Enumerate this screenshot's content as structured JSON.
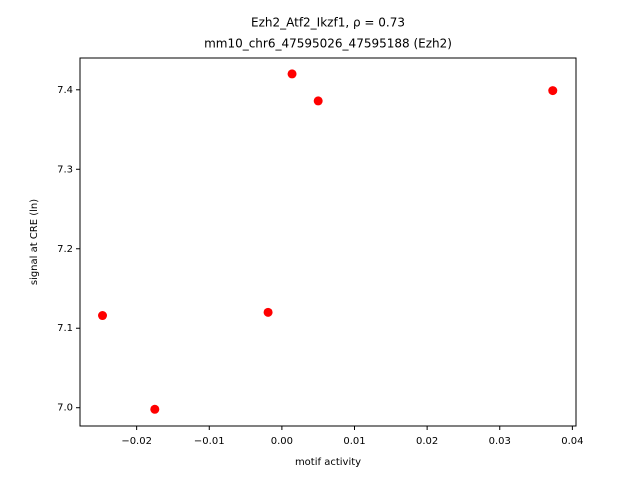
{
  "chart_data": {
    "type": "scatter",
    "title": "Ezh2_Atf2_Ikzf1, ρ = 0.73",
    "subtitle": "mm10_chr6_47595026_47595188 (Ezh2)",
    "xlabel": "motif activity",
    "ylabel": "signal at CRE (ln)",
    "color": "#ff0000",
    "x": [
      -0.0247,
      -0.0175,
      -0.0019,
      0.0014,
      0.005,
      0.0373
    ],
    "values": [
      7.116,
      6.998,
      7.12,
      7.42,
      7.386,
      7.399
    ],
    "xlim": [
      -0.0278,
      0.0405
    ],
    "ylim": [
      6.977,
      7.44
    ],
    "xticks": [
      {
        "value": -0.02,
        "label": "−0.02"
      },
      {
        "value": -0.01,
        "label": "−0.01"
      },
      {
        "value": 0,
        "label": "0.00"
      },
      0.01,
      0.02,
      0.03,
      0.04
    ],
    "yticks": [
      {
        "value": 7.0,
        "label": "7.0"
      },
      7.1,
      7.2,
      7.3,
      7.4
    ]
  }
}
